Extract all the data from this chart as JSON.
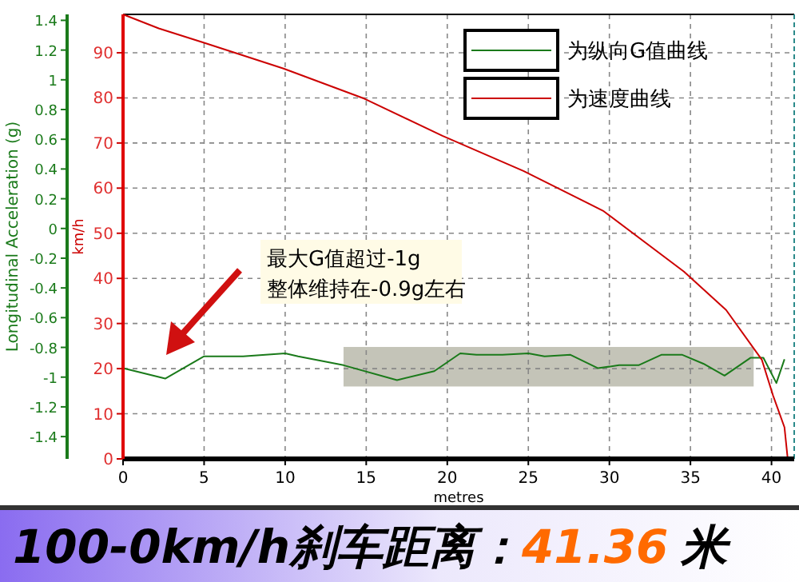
{
  "chart_data": {
    "type": "line",
    "title": "100-0km/h刹车距离：",
    "subtitle": "41.36",
    "xlabel": "metres",
    "ylabel": "km/h",
    "y2label": "Longitudinal Acceleration (g)",
    "annotations": [
      "最大G值超过-1g",
      "整体维持在-0.9g左右",
      "米"
    ],
    "xlim": [
      0,
      41.4
    ],
    "xticks": [
      0,
      5,
      10,
      15,
      20,
      25,
      30,
      35,
      40
    ],
    "ylim": [
      0,
      98.5
    ],
    "yticks": [
      0,
      10,
      20,
      30,
      40,
      50,
      60,
      70,
      80,
      90
    ],
    "y2lim": [
      -1.55,
      1.44
    ],
    "y2ticks": [
      -1.4,
      -1.2,
      -1,
      -0.8,
      -0.6,
      -0.4,
      -0.2,
      0,
      0.2,
      0.4,
      0.6,
      0.8,
      1,
      1.2,
      1.4
    ],
    "grid": true,
    "legend": "top right",
    "bands": [
      {
        "axis": "x",
        "from": 13.6,
        "to": 38.9,
        "color": "#c4c4b8"
      }
    ],
    "series": [
      {
        "name": "为纵向G值曲线",
        "color": "#1a7a1a",
        "axis": "y2",
        "x": [
          0,
          2.6,
          5.0,
          7.4,
          10.0,
          10.8,
          13.6,
          16.9,
          19.2,
          20.8,
          21.8,
          23.4,
          25.0,
          26.0,
          27.6,
          29.3,
          30.6,
          31.8,
          33.2,
          34.5,
          35.8,
          37.1,
          38.7,
          39.5,
          40.3,
          40.8
        ],
        "values": [
          -0.94,
          -1.01,
          -0.86,
          -0.86,
          -0.84,
          -0.86,
          -0.92,
          -1.02,
          -0.96,
          -0.84,
          -0.85,
          -0.85,
          -0.84,
          -0.86,
          -0.85,
          -0.94,
          -0.92,
          -0.92,
          -0.85,
          -0.85,
          -0.91,
          -0.99,
          -0.87,
          -0.87,
          -1.04,
          -0.88
        ]
      },
      {
        "name": "为速度曲线",
        "color": "#cc0000",
        "x": [
          0,
          2.2,
          5.0,
          9.9,
          14.9,
          19.7,
          24.7,
          29.6,
          34.6,
          37.2,
          39.4,
          40.1,
          40.8,
          41.0
        ],
        "values": [
          98.5,
          95.4,
          92.2,
          86.5,
          79.8,
          71.6,
          63.8,
          55,
          41.5,
          33,
          22,
          14,
          7,
          0
        ]
      }
    ]
  }
}
